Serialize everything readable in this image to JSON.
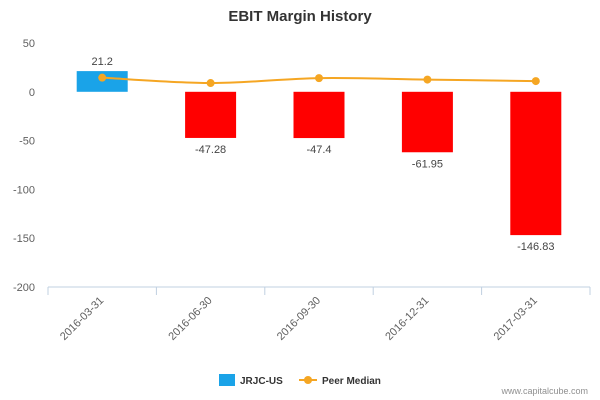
{
  "chart_data": {
    "type": "bar",
    "title": "EBIT Margin History",
    "categories": [
      "2016-03-31",
      "2016-06-30",
      "2016-09-30",
      "2016-12-31",
      "2017-03-31"
    ],
    "series": [
      {
        "name": "JRJC-US",
        "kind": "bar",
        "values": [
          21.2,
          -47.28,
          -47.4,
          -61.95,
          -146.83
        ],
        "data_labels": [
          "21.2",
          "-47.28",
          "-47.4",
          "-61.95",
          "-146.83"
        ],
        "color_positive": "#1aa3e8",
        "color_negative": "#ff0000"
      },
      {
        "name": "Peer Median",
        "kind": "line",
        "values": [
          14.5,
          9.0,
          14.0,
          12.5,
          11.0
        ],
        "color": "#f5a623"
      }
    ],
    "ylim": [
      -200,
      50
    ],
    "yticks": [
      "50",
      "0",
      "-50",
      "-100",
      "-150",
      "-200"
    ],
    "ytick_values": [
      50,
      0,
      -50,
      -100,
      -150,
      -200
    ],
    "xlabel": "",
    "ylabel": "",
    "grid": false,
    "legend": "bottom-center"
  },
  "credit": "www.capitalcube.com"
}
